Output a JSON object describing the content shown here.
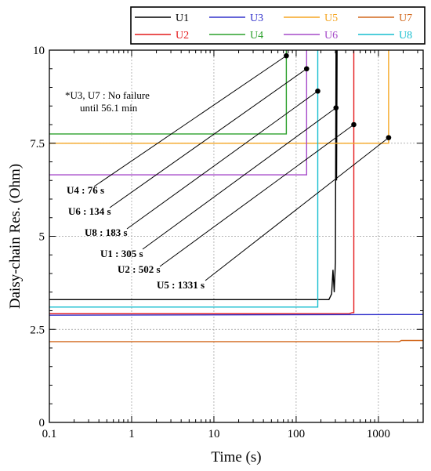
{
  "chart_data": {
    "type": "line",
    "xlabel": "Time (s)",
    "ylabel": "Daisy-chain Res. (Ohm)",
    "xscale": "log",
    "xlim": [
      0.1,
      3500
    ],
    "ylim": [
      0,
      10
    ],
    "xticks": [
      {
        "v": 0.1,
        "label": "0.1"
      },
      {
        "v": 1,
        "label": "1"
      },
      {
        "v": 10,
        "label": "10"
      },
      {
        "v": 100,
        "label": "100"
      },
      {
        "v": 1000,
        "label": "1000"
      }
    ],
    "yticks": [
      {
        "v": 0,
        "label": "0"
      },
      {
        "v": 2.5,
        "label": "2.5"
      },
      {
        "v": 5,
        "label": "5"
      },
      {
        "v": 7.5,
        "label": "7.5"
      },
      {
        "v": 10,
        "label": "10"
      }
    ],
    "legend_position": "top-right, above plot",
    "series": [
      {
        "name": "U1",
        "color": "#000000",
        "points": [
          [
            0.1,
            3.3
          ],
          [
            250,
            3.3
          ],
          [
            270,
            3.45
          ],
          [
            280,
            4.1
          ],
          [
            290,
            3.5
          ],
          [
            300,
            4.3
          ],
          [
            305,
            10.2
          ],
          [
            310,
            6.5
          ],
          [
            315,
            10.2
          ],
          [
            320,
            10.2
          ]
        ]
      },
      {
        "name": "U2",
        "color": "#e41a1c",
        "points": [
          [
            0.1,
            2.92
          ],
          [
            440,
            2.92
          ],
          [
            480,
            2.95
          ],
          [
            502,
            2.95
          ],
          [
            502,
            10.2
          ]
        ]
      },
      {
        "name": "U3",
        "color": "#3333cc",
        "points": [
          [
            0.1,
            2.88
          ],
          [
            3500,
            2.9
          ]
        ]
      },
      {
        "name": "U4",
        "color": "#2ca02c",
        "points": [
          [
            0.1,
            7.75
          ],
          [
            76,
            7.75
          ],
          [
            76,
            10.2
          ]
        ]
      },
      {
        "name": "U5",
        "color": "#f5a623",
        "points": [
          [
            0.1,
            7.5
          ],
          [
            1331,
            7.5
          ],
          [
            1331,
            10.2
          ]
        ]
      },
      {
        "name": "U6",
        "color": "#a64ac9",
        "points": [
          [
            0.1,
            6.65
          ],
          [
            134,
            6.65
          ],
          [
            134,
            10.2
          ]
        ]
      },
      {
        "name": "U7",
        "color": "#d2691e",
        "points": [
          [
            0.1,
            2.17
          ],
          [
            1800,
            2.17
          ],
          [
            1900,
            2.2
          ],
          [
            3500,
            2.2
          ]
        ]
      },
      {
        "name": "U8",
        "color": "#17becf",
        "points": [
          [
            0.1,
            3.1
          ],
          [
            183,
            3.1
          ],
          [
            183,
            10.2
          ]
        ]
      }
    ],
    "annotations": [
      {
        "text": "U4 : 76 s",
        "x": 76,
        "y": 9.85
      },
      {
        "text": "U6 : 134 s",
        "x": 134,
        "y": 9.5
      },
      {
        "text": "U8 : 183 s",
        "x": 183,
        "y": 8.9
      },
      {
        "text": "U1 : 305 s",
        "x": 305,
        "y": 8.45
      },
      {
        "text": "U2 : 502 s",
        "x": 502,
        "y": 8.0
      },
      {
        "text": "U5 : 1331 s",
        "x": 1331,
        "y": 7.65
      }
    ],
    "note_lines": [
      "*U3, U7 : No failure",
      "until 56.1 min"
    ]
  }
}
